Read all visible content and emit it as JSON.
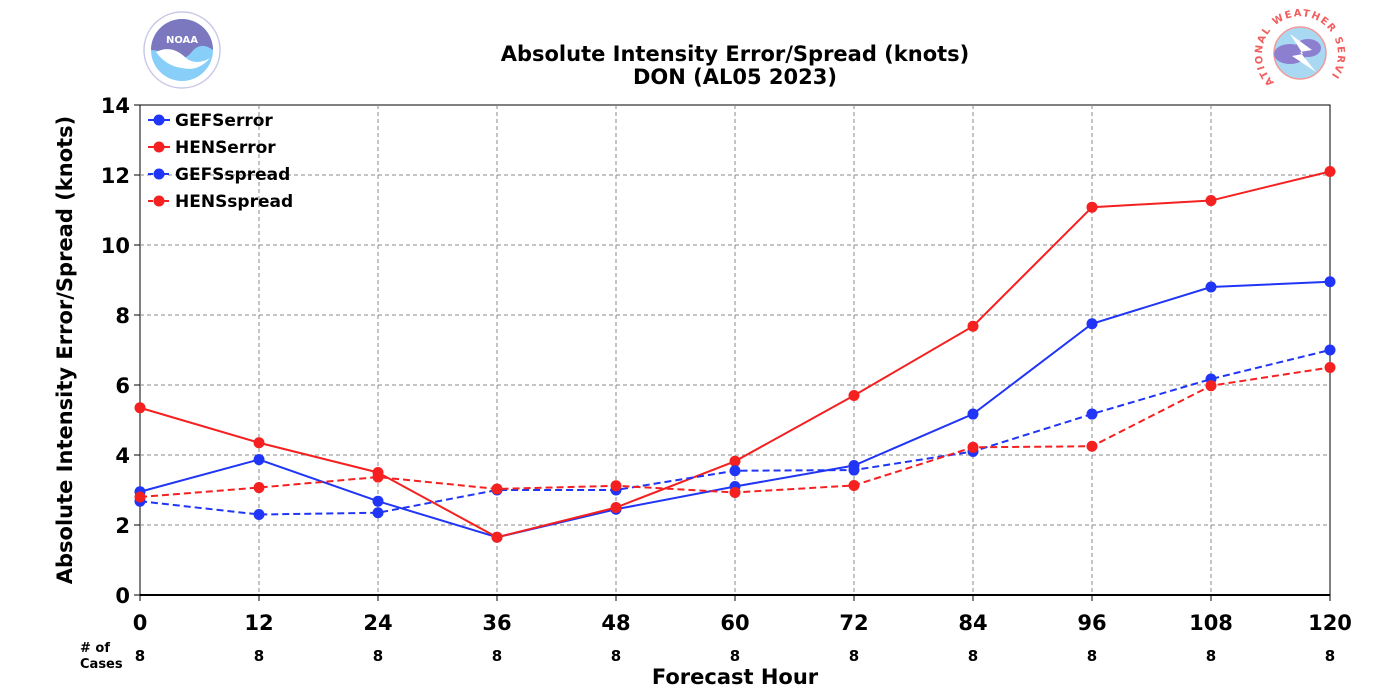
{
  "title_line1": "Absolute Intensity Error/Spread (knots)",
  "title_line2": "DON (AL05 2023)",
  "logos": {
    "left": "NOAA",
    "right": "NATIONAL WEATHER SERVICE"
  },
  "cases_header_line1": "# of",
  "cases_header_line2": "Cases",
  "chart_data": {
    "type": "line",
    "title": "Absolute Intensity Error/Spread (knots)",
    "subtitle": "DON (AL05 2023)",
    "xlabel": "Forecast Hour",
    "ylabel": "Absolute Intensity Error/Spread (knots)",
    "x": [
      0,
      12,
      24,
      36,
      48,
      60,
      72,
      84,
      96,
      108,
      120
    ],
    "xlim": [
      0,
      120
    ],
    "ylim": [
      0,
      14
    ],
    "yticks": [
      0,
      2,
      4,
      6,
      8,
      10,
      12,
      14
    ],
    "grid": true,
    "legend_position": "top-left",
    "cases": [
      8,
      8,
      8,
      8,
      8,
      8,
      8,
      8,
      8,
      8,
      8
    ],
    "series": [
      {
        "name": "GEFSerror",
        "color": "#2035f5",
        "dashed": false,
        "values": [
          2.95,
          3.87,
          2.68,
          1.65,
          2.45,
          3.1,
          3.7,
          5.17,
          7.75,
          8.8,
          8.95
        ]
      },
      {
        "name": "HENSerror",
        "color": "#f52020",
        "dashed": false,
        "values": [
          5.35,
          4.35,
          3.5,
          1.65,
          2.5,
          3.82,
          5.7,
          7.68,
          11.08,
          11.27,
          12.1
        ]
      },
      {
        "name": "GEFSspread",
        "color": "#2035f5",
        "dashed": true,
        "values": [
          2.68,
          2.3,
          2.35,
          3.0,
          3.0,
          3.55,
          3.57,
          4.1,
          5.17,
          6.17,
          7.0
        ]
      },
      {
        "name": "HENSspread",
        "color": "#f52020",
        "dashed": true,
        "values": [
          2.8,
          3.07,
          3.37,
          3.03,
          3.12,
          2.93,
          3.13,
          4.22,
          4.25,
          5.98,
          6.5
        ]
      }
    ]
  }
}
